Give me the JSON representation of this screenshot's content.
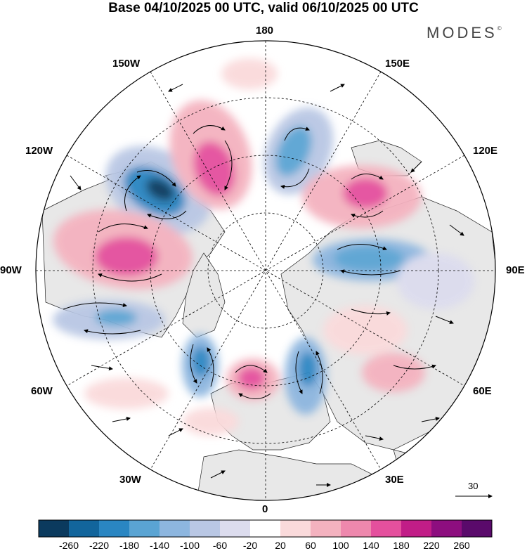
{
  "title": "Base 04/10/2025 00 UTC, valid 06/10/2025 00 UTC",
  "brand": {
    "name": "MODES",
    "mark": "©"
  },
  "longitude_labels": {
    "top": "180",
    "bottom": "0",
    "left": "90W",
    "right": "90E",
    "upper_left": "150W",
    "upper_right": "150E",
    "mid_upper_left": "120W",
    "mid_upper_right": "120E",
    "mid_lower_left": "60W",
    "mid_lower_right": "60E",
    "lower_left": "30W",
    "lower_right": "30E"
  },
  "wind_reference": {
    "value": "30"
  },
  "colorbar": {
    "ticks": [
      "-260",
      "-220",
      "-180",
      "-140",
      "-100",
      "-60",
      "-20",
      "20",
      "60",
      "100",
      "140",
      "180",
      "220",
      "260"
    ],
    "colors": [
      "#0b3a5e",
      "#12659c",
      "#2a86c2",
      "#5aa4d3",
      "#8db6df",
      "#b9c7e4",
      "#dcdcee",
      "#ffffff",
      "#fadadb",
      "#f4b2bf",
      "#ee88ad",
      "#e4509d",
      "#c11d87",
      "#8d0e7f",
      "#5a0a6b"
    ]
  },
  "colors": {
    "land": "#e8e8e8",
    "ocean": "#ffffff"
  }
}
